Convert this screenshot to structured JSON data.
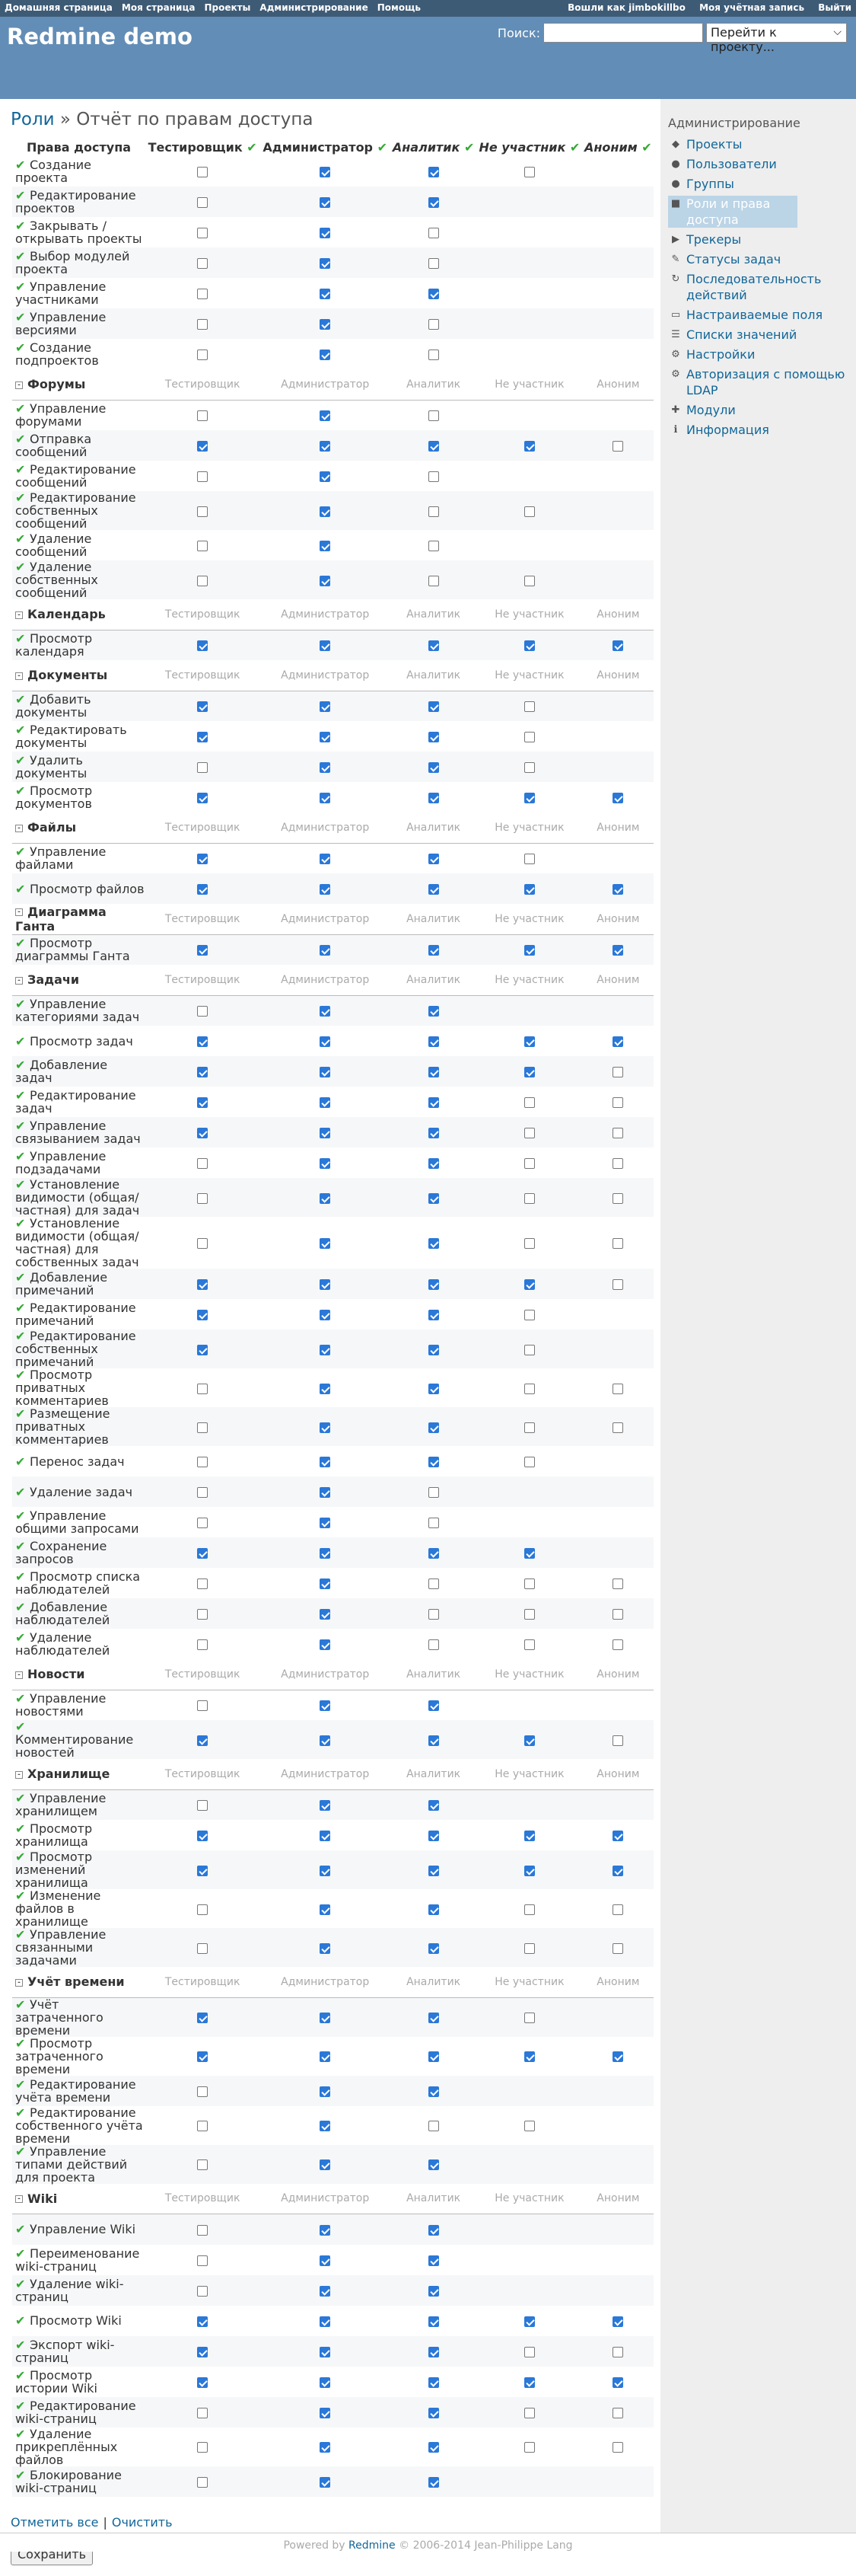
{
  "top_menu": {
    "left": [
      "Домашняя страница",
      "Моя страница",
      "Проекты",
      "Администрирование",
      "Помощь"
    ],
    "logged_as": "Вошли как",
    "user": "jimbokillbo",
    "account": "Моя учётная запись",
    "logout": "Выйти"
  },
  "header": {
    "title": "Redmine demo",
    "search_label": "Поиск:",
    "jump_label": "Перейти к проекту..."
  },
  "page": {
    "title_link": "Роли",
    "title_sep": "»",
    "title": "Отчёт по правам доступа"
  },
  "columns": [
    "Права доступа",
    "Тестировщик",
    "Администратор",
    "Аналитик",
    "Не участник",
    "Аноним"
  ],
  "column_italic": [
    false,
    false,
    false,
    true,
    true,
    true
  ],
  "permissions": [
    {
      "type": "row",
      "label": "Создание проекта",
      "v": [
        0,
        1,
        1,
        0,
        null
      ]
    },
    {
      "type": "row",
      "label": "Редактирование проектов",
      "v": [
        0,
        1,
        1,
        null,
        null
      ]
    },
    {
      "type": "row",
      "label": "Закрывать / открывать проекты",
      "v": [
        0,
        1,
        0,
        null,
        null
      ]
    },
    {
      "type": "row",
      "label": "Выбор модулей проекта",
      "v": [
        0,
        1,
        0,
        null,
        null
      ]
    },
    {
      "type": "row",
      "label": "Управление участниками",
      "v": [
        0,
        1,
        1,
        null,
        null
      ]
    },
    {
      "type": "row",
      "label": "Управление версиями",
      "v": [
        0,
        1,
        0,
        null,
        null
      ]
    },
    {
      "type": "row",
      "label": "Создание подпроектов",
      "v": [
        0,
        1,
        0,
        null,
        null
      ]
    },
    {
      "type": "group",
      "label": "Форумы"
    },
    {
      "type": "row",
      "label": "Управление форумами",
      "v": [
        0,
        1,
        0,
        null,
        null
      ]
    },
    {
      "type": "row",
      "label": "Отправка сообщений",
      "v": [
        1,
        1,
        1,
        1,
        0
      ]
    },
    {
      "type": "row",
      "label": "Редактирование сообщений",
      "v": [
        0,
        1,
        0,
        null,
        null
      ]
    },
    {
      "type": "row",
      "label": "Редактирование собственных сообщений",
      "v": [
        0,
        1,
        0,
        0,
        null
      ]
    },
    {
      "type": "row",
      "label": "Удаление сообщений",
      "v": [
        0,
        1,
        0,
        null,
        null
      ]
    },
    {
      "type": "row",
      "label": "Удаление собственных сообщений",
      "v": [
        0,
        1,
        0,
        0,
        null
      ]
    },
    {
      "type": "group",
      "label": "Календарь"
    },
    {
      "type": "row",
      "label": "Просмотр календаря",
      "v": [
        1,
        1,
        1,
        1,
        1
      ]
    },
    {
      "type": "group",
      "label": "Документы"
    },
    {
      "type": "row",
      "label": "Добавить документы",
      "v": [
        1,
        1,
        1,
        0,
        null
      ]
    },
    {
      "type": "row",
      "label": "Редактировать документы",
      "v": [
        1,
        1,
        1,
        0,
        null
      ]
    },
    {
      "type": "row",
      "label": "Удалить документы",
      "v": [
        0,
        1,
        1,
        0,
        null
      ]
    },
    {
      "type": "row",
      "label": "Просмотр документов",
      "v": [
        1,
        1,
        1,
        1,
        1
      ]
    },
    {
      "type": "group",
      "label": "Файлы"
    },
    {
      "type": "row",
      "label": "Управление файлами",
      "v": [
        1,
        1,
        1,
        0,
        null
      ]
    },
    {
      "type": "row",
      "label": "Просмотр файлов",
      "v": [
        1,
        1,
        1,
        1,
        1
      ]
    },
    {
      "type": "group",
      "label": "Диаграмма Ганта"
    },
    {
      "type": "row",
      "label": "Просмотр диаграммы Ганта",
      "v": [
        1,
        1,
        1,
        1,
        1
      ]
    },
    {
      "type": "group",
      "label": "Задачи"
    },
    {
      "type": "row",
      "label": "Управление категориями задач",
      "v": [
        0,
        1,
        1,
        null,
        null
      ]
    },
    {
      "type": "row",
      "label": "Просмотр задач",
      "v": [
        1,
        1,
        1,
        1,
        1
      ]
    },
    {
      "type": "row",
      "label": "Добавление задач",
      "v": [
        1,
        1,
        1,
        1,
        0
      ]
    },
    {
      "type": "row",
      "label": "Редактирование задач",
      "v": [
        1,
        1,
        1,
        0,
        0
      ]
    },
    {
      "type": "row",
      "label": "Управление связыванием задач",
      "v": [
        1,
        1,
        1,
        0,
        0
      ]
    },
    {
      "type": "row",
      "label": "Управление подзадачами",
      "v": [
        0,
        1,
        1,
        0,
        0
      ]
    },
    {
      "type": "row",
      "label": "Установление видимости (общая/частная) для задач",
      "v": [
        0,
        1,
        1,
        0,
        0
      ]
    },
    {
      "type": "row",
      "label": "Установление видимости (общая/частная) для собственных задач",
      "v": [
        0,
        1,
        1,
        0,
        0
      ]
    },
    {
      "type": "row",
      "label": "Добавление примечаний",
      "v": [
        1,
        1,
        1,
        1,
        0
      ]
    },
    {
      "type": "row",
      "label": "Редактирование примечаний",
      "v": [
        1,
        1,
        1,
        0,
        null
      ]
    },
    {
      "type": "row",
      "label": "Редактирование собственных примечаний",
      "v": [
        1,
        1,
        1,
        0,
        null
      ]
    },
    {
      "type": "row",
      "label": "Просмотр приватных комментариев",
      "v": [
        0,
        1,
        1,
        0,
        0
      ]
    },
    {
      "type": "row",
      "label": "Размещение приватных комментариев",
      "v": [
        0,
        1,
        1,
        0,
        0
      ]
    },
    {
      "type": "row",
      "label": "Перенос задач",
      "v": [
        0,
        1,
        1,
        0,
        null
      ]
    },
    {
      "type": "row",
      "label": "Удаление задач",
      "v": [
        0,
        1,
        0,
        null,
        null
      ]
    },
    {
      "type": "row",
      "label": "Управление общими запросами",
      "v": [
        0,
        1,
        0,
        null,
        null
      ]
    },
    {
      "type": "row",
      "label": "Сохранение запросов",
      "v": [
        1,
        1,
        1,
        1,
        null
      ]
    },
    {
      "type": "row",
      "label": "Просмотр списка наблюдателей",
      "v": [
        0,
        1,
        0,
        0,
        0
      ]
    },
    {
      "type": "row",
      "label": "Добавление наблюдателей",
      "v": [
        0,
        1,
        0,
        0,
        0
      ]
    },
    {
      "type": "row",
      "label": "Удаление наблюдателей",
      "v": [
        0,
        1,
        0,
        0,
        0
      ]
    },
    {
      "type": "group",
      "label": "Новости"
    },
    {
      "type": "row",
      "label": "Управление новостями",
      "v": [
        0,
        1,
        1,
        null,
        null
      ]
    },
    {
      "type": "row",
      "label": "Комментирование новостей",
      "v": [
        1,
        1,
        1,
        1,
        0
      ]
    },
    {
      "type": "group",
      "label": "Хранилище"
    },
    {
      "type": "row",
      "label": "Управление хранилищем",
      "v": [
        0,
        1,
        1,
        null,
        null
      ]
    },
    {
      "type": "row",
      "label": "Просмотр хранилища",
      "v": [
        1,
        1,
        1,
        1,
        1
      ]
    },
    {
      "type": "row",
      "label": "Просмотр изменений хранилища",
      "v": [
        1,
        1,
        1,
        1,
        1
      ]
    },
    {
      "type": "row",
      "label": "Изменение файлов в хранилище",
      "v": [
        0,
        1,
        1,
        0,
        0
      ]
    },
    {
      "type": "row",
      "label": "Управление связанными задачами",
      "v": [
        0,
        1,
        1,
        0,
        0
      ]
    },
    {
      "type": "group",
      "label": "Учёт времени"
    },
    {
      "type": "row",
      "label": "Учёт затраченного времени",
      "v": [
        1,
        1,
        1,
        0,
        null
      ]
    },
    {
      "type": "row",
      "label": "Просмотр затраченного времени",
      "v": [
        1,
        1,
        1,
        1,
        1
      ]
    },
    {
      "type": "row",
      "label": "Редактирование учёта времени",
      "v": [
        0,
        1,
        1,
        null,
        null
      ]
    },
    {
      "type": "row",
      "label": "Редактирование собственного учёта времени",
      "v": [
        0,
        1,
        0,
        0,
        null
      ]
    },
    {
      "type": "row",
      "label": "Управление типами действий для проекта",
      "v": [
        0,
        1,
        1,
        null,
        null
      ]
    },
    {
      "type": "group",
      "label": "Wiki"
    },
    {
      "type": "row",
      "label": "Управление Wiki",
      "v": [
        0,
        1,
        1,
        null,
        null
      ]
    },
    {
      "type": "row",
      "label": "Переименование wiki-страниц",
      "v": [
        0,
        1,
        1,
        null,
        null
      ]
    },
    {
      "type": "row",
      "label": "Удаление wiki-страниц",
      "v": [
        0,
        1,
        1,
        null,
        null
      ]
    },
    {
      "type": "row",
      "label": "Просмотр Wiki",
      "v": [
        1,
        1,
        1,
        1,
        1
      ]
    },
    {
      "type": "row",
      "label": "Экспорт wiki-страниц",
      "v": [
        1,
        1,
        1,
        0,
        0
      ]
    },
    {
      "type": "row",
      "label": "Просмотр истории Wiki",
      "v": [
        1,
        1,
        1,
        1,
        1
      ]
    },
    {
      "type": "row",
      "label": "Редактирование wiki-страниц",
      "v": [
        0,
        1,
        1,
        0,
        0
      ]
    },
    {
      "type": "row",
      "label": "Удаление прикреплённых файлов",
      "v": [
        0,
        1,
        1,
        0,
        0
      ]
    },
    {
      "type": "row",
      "label": "Блокирование wiki-страниц",
      "v": [
        0,
        1,
        1,
        null,
        null
      ]
    }
  ],
  "links": {
    "check_all": "Отметить все",
    "sep": "|",
    "uncheck_all": "Очистить"
  },
  "save_label": "Сохранить",
  "sidebar": {
    "title": "Администрирование",
    "items": [
      {
        "label": "Проекты",
        "icon": "projects-icon",
        "glyph": "◆"
      },
      {
        "label": "Пользователи",
        "icon": "users-icon",
        "glyph": "●"
      },
      {
        "label": "Группы",
        "icon": "groups-icon",
        "glyph": "●"
      },
      {
        "label": "Роли и права доступа",
        "icon": "roles-icon",
        "glyph": "■",
        "active": true
      },
      {
        "label": "Трекеры",
        "icon": "trackers-icon",
        "glyph": "▶"
      },
      {
        "label": "Статусы задач",
        "icon": "statuses-icon",
        "glyph": "✎"
      },
      {
        "label": "Последовательность действий",
        "icon": "workflow-icon",
        "glyph": "↻"
      },
      {
        "label": "Настраиваемые поля",
        "icon": "custom-fields-icon",
        "glyph": "▭"
      },
      {
        "label": "Списки значений",
        "icon": "enumerations-icon",
        "glyph": "☰"
      },
      {
        "label": "Настройки",
        "icon": "settings-icon",
        "glyph": "⚙"
      },
      {
        "label": "Авторизация с помощью LDAP",
        "icon": "ldap-icon",
        "glyph": "⚙"
      },
      {
        "label": "Модули",
        "icon": "plugins-icon",
        "glyph": "✚"
      },
      {
        "label": "Информация",
        "icon": "info-icon",
        "glyph": "ℹ"
      }
    ]
  },
  "footer": {
    "prefix": "Powered by",
    "link": "Redmine",
    "suffix": "© 2006-2014 Jean-Philippe Lang"
  }
}
